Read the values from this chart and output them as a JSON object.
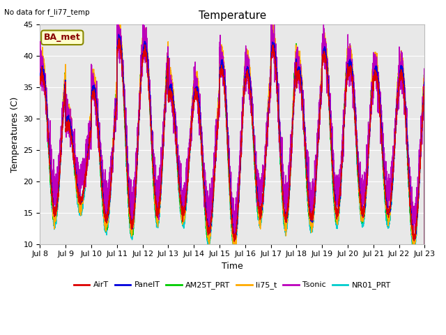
{
  "title": "Temperature",
  "ylabel": "Temperatures (C)",
  "xlabel": "Time",
  "note": "No data for f_li77_temp",
  "legend_label": "BA_met",
  "ylim": [
    10,
    45
  ],
  "series": {
    "AirT": {
      "color": "#dd0000",
      "lw": 1.0
    },
    "PanelT": {
      "color": "#0000dd",
      "lw": 1.0
    },
    "AM25T_PRT": {
      "color": "#00cc00",
      "lw": 1.0
    },
    "li75_t": {
      "color": "#ffaa00",
      "lw": 1.0
    },
    "Tsonic": {
      "color": "#bb00bb",
      "lw": 1.0
    },
    "NR01_PRT": {
      "color": "#00cccc",
      "lw": 1.0
    }
  },
  "x_tick_labels": [
    "Jul 8",
    "Jul 9",
    "Jul 10",
    "Jul 11",
    "Jul 12",
    "Jul 13",
    "Jul 14",
    "Jul 15",
    "Jul 16",
    "Jul 17",
    "Jul 18",
    "Jul 19",
    "Jul 20",
    "Jul 21",
    "Jul 22",
    "Jul 23"
  ],
  "y_ticks": [
    10,
    15,
    20,
    25,
    30,
    35,
    40,
    45
  ],
  "plot_bg": "#e8e8e8",
  "grid_color": "#ffffff",
  "title_fontsize": 11,
  "axis_fontsize": 9,
  "tick_fontsize": 8,
  "day_maxima": [
    37,
    29,
    34,
    42,
    41,
    34,
    34,
    38,
    37,
    41,
    37,
    40,
    38,
    37,
    37,
    37
  ],
  "day_minima": [
    15,
    17,
    14,
    13,
    15,
    15,
    12,
    11,
    15,
    14,
    14,
    15,
    15,
    15,
    11,
    19
  ]
}
